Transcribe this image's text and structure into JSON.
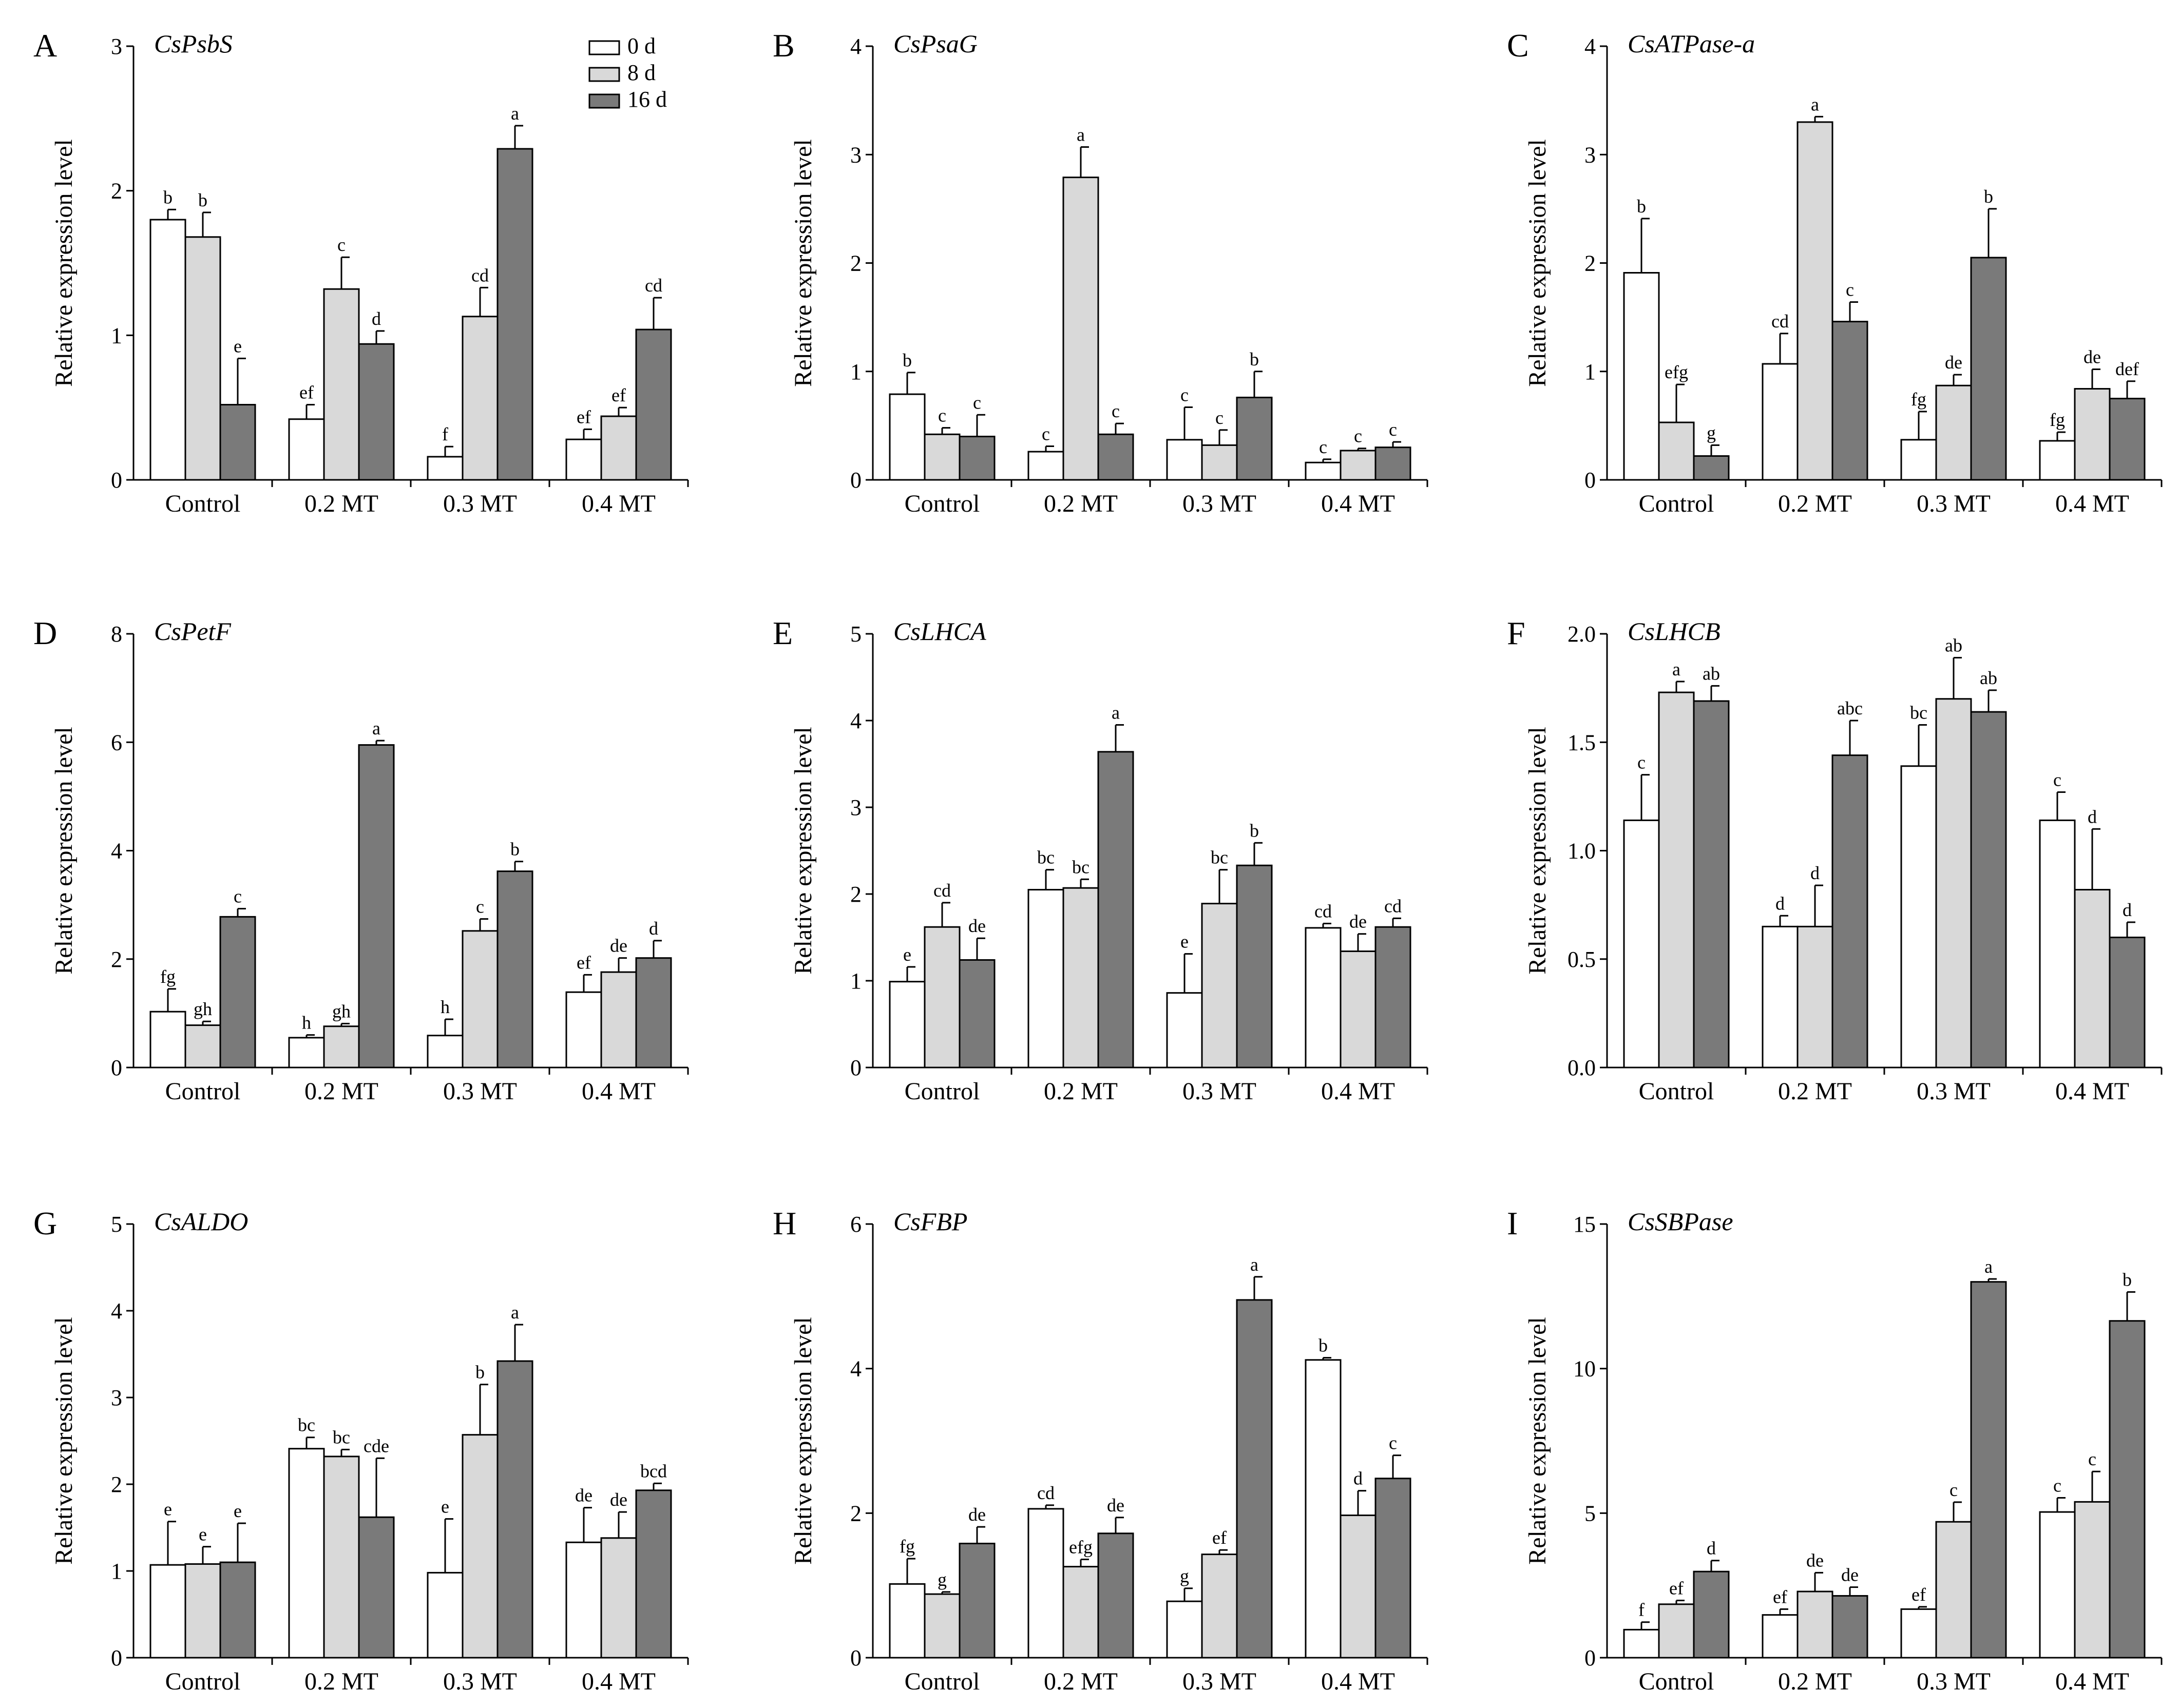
{
  "figure_info": {
    "legend": [
      {
        "label": "0 d",
        "color": "#ffffff"
      },
      {
        "label": "8 d",
        "color": "#d9d9d9"
      },
      {
        "label": "16 d",
        "color": "#7a7a7a"
      }
    ],
    "series_colors": [
      "#ffffff",
      "#d9d9d9",
      "#7a7a7a"
    ]
  },
  "chart_data": [
    {
      "panel": "A",
      "title": "CsPsbS",
      "type": "bar",
      "ylabel": "Relative expression level",
      "ylim": [
        0,
        3
      ],
      "yticks": [
        "0",
        "1",
        "2",
        "3"
      ],
      "categories": [
        "Control",
        "0.2 MT",
        "0.3 MT",
        "0.4 MT"
      ],
      "series": [
        {
          "name": "0 d",
          "values": [
            1.8,
            0.42,
            0.16,
            0.28
          ],
          "errors": [
            0.07,
            0.1,
            0.07,
            0.07
          ],
          "letters": [
            "b",
            "ef",
            "f",
            "ef"
          ]
        },
        {
          "name": "8 d",
          "values": [
            1.68,
            1.32,
            1.13,
            0.44
          ],
          "errors": [
            0.17,
            0.22,
            0.2,
            0.06
          ],
          "letters": [
            "b",
            "c",
            "cd",
            "ef"
          ]
        },
        {
          "name": "16 d",
          "values": [
            0.52,
            0.94,
            2.29,
            1.04
          ],
          "errors": [
            0.32,
            0.09,
            0.16,
            0.22
          ],
          "letters": [
            "e",
            "d",
            "a",
            "cd"
          ]
        }
      ]
    },
    {
      "panel": "B",
      "title": "CsPsaG",
      "type": "bar",
      "ylabel": "Relative expression level",
      "ylim": [
        0,
        4
      ],
      "yticks": [
        "0",
        "1",
        "2",
        "3",
        "4"
      ],
      "categories": [
        "Control",
        "0.2 MT",
        "0.3 MT",
        "0.4 MT"
      ],
      "series": [
        {
          "name": "0 d",
          "values": [
            0.79,
            0.26,
            0.37,
            0.16
          ],
          "errors": [
            0.2,
            0.05,
            0.3,
            0.03
          ],
          "letters": [
            "b",
            "c",
            "c",
            "c"
          ]
        },
        {
          "name": "8 d",
          "values": [
            0.42,
            2.79,
            0.32,
            0.27
          ],
          "errors": [
            0.06,
            0.28,
            0.14,
            0.02
          ],
          "letters": [
            "c",
            "a",
            "c",
            "c"
          ]
        },
        {
          "name": "16 d",
          "values": [
            0.4,
            0.42,
            0.76,
            0.3
          ],
          "errors": [
            0.2,
            0.1,
            0.24,
            0.05
          ],
          "letters": [
            "c",
            "c",
            "b",
            "c"
          ]
        }
      ]
    },
    {
      "panel": "C",
      "title": "CsATPase-a",
      "type": "bar",
      "ylabel": "Relative expression level",
      "ylim": [
        0,
        4
      ],
      "yticks": [
        "0",
        "1",
        "2",
        "3",
        "4"
      ],
      "categories": [
        "Control",
        "0.2 MT",
        "0.3 MT",
        "0.4 MT"
      ],
      "series": [
        {
          "name": "0 d",
          "values": [
            1.91,
            1.07,
            0.37,
            0.36
          ],
          "errors": [
            0.5,
            0.28,
            0.26,
            0.08
          ],
          "letters": [
            "b",
            "cd",
            "fg",
            "fg"
          ]
        },
        {
          "name": "8 d",
          "values": [
            0.53,
            3.3,
            0.87,
            0.84
          ],
          "errors": [
            0.35,
            0.05,
            0.1,
            0.18
          ],
          "letters": [
            "efg",
            "a",
            "de",
            "de"
          ]
        },
        {
          "name": "16 d",
          "values": [
            0.22,
            1.46,
            2.05,
            0.75
          ],
          "errors": [
            0.1,
            0.18,
            0.45,
            0.16
          ],
          "letters": [
            "g",
            "c",
            "b",
            "def"
          ]
        }
      ]
    },
    {
      "panel": "D",
      "title": "CsPetF",
      "type": "bar",
      "ylabel": "Relative expression level",
      "ylim": [
        0,
        8
      ],
      "yticks": [
        "0",
        "2",
        "4",
        "6",
        "8"
      ],
      "categories": [
        "Control",
        "0.2 MT",
        "0.3 MT",
        "0.4 MT"
      ],
      "series": [
        {
          "name": "0 d",
          "values": [
            1.03,
            0.55,
            0.59,
            1.39
          ],
          "errors": [
            0.42,
            0.05,
            0.3,
            0.32
          ],
          "letters": [
            "fg",
            "h",
            "h",
            "ef"
          ]
        },
        {
          "name": "8 d",
          "values": [
            0.78,
            0.76,
            2.52,
            1.76
          ],
          "errors": [
            0.07,
            0.05,
            0.22,
            0.26
          ],
          "letters": [
            "gh",
            "gh",
            "c",
            "de"
          ]
        },
        {
          "name": "16 d",
          "values": [
            2.78,
            5.95,
            3.62,
            2.02
          ],
          "errors": [
            0.15,
            0.08,
            0.18,
            0.32
          ],
          "letters": [
            "c",
            "a",
            "b",
            "d"
          ]
        }
      ]
    },
    {
      "panel": "E",
      "title": "CsLHCA",
      "type": "bar",
      "ylabel": "Relative expression level",
      "ylim": [
        0,
        5
      ],
      "yticks": [
        "0",
        "1",
        "2",
        "3",
        "4",
        "5"
      ],
      "categories": [
        "Control",
        "0.2 MT",
        "0.3 MT",
        "0.4 MT"
      ],
      "series": [
        {
          "name": "0 d",
          "values": [
            0.99,
            2.05,
            0.86,
            1.61
          ],
          "errors": [
            0.17,
            0.23,
            0.45,
            0.05
          ],
          "letters": [
            "e",
            "bc",
            "e",
            "cd"
          ]
        },
        {
          "name": "8 d",
          "values": [
            1.62,
            2.07,
            1.89,
            1.34
          ],
          "errors": [
            0.28,
            0.1,
            0.39,
            0.2
          ],
          "letters": [
            "cd",
            "bc",
            "bc",
            "de"
          ]
        },
        {
          "name": "16 d",
          "values": [
            1.24,
            3.64,
            2.33,
            1.62
          ],
          "errors": [
            0.25,
            0.31,
            0.26,
            0.1
          ],
          "letters": [
            "de",
            "a",
            "b",
            "cd"
          ]
        }
      ]
    },
    {
      "panel": "F",
      "title": "CsLHCB",
      "type": "bar",
      "ylabel": "Relative expression level",
      "ylim": [
        0,
        2
      ],
      "yticks": [
        "0.0",
        "0.5",
        "1.0",
        "1.5",
        "2.0"
      ],
      "categories": [
        "Control",
        "0.2 MT",
        "0.3 MT",
        "0.4 MT"
      ],
      "series": [
        {
          "name": "0 d",
          "values": [
            1.14,
            0.65,
            1.39,
            1.14
          ],
          "errors": [
            0.21,
            0.05,
            0.19,
            0.13
          ],
          "letters": [
            "c",
            "d",
            "bc",
            "c"
          ]
        },
        {
          "name": "8 d",
          "values": [
            1.73,
            0.65,
            1.7,
            0.82
          ],
          "errors": [
            0.05,
            0.19,
            0.19,
            0.28
          ],
          "letters": [
            "a",
            "d",
            "ab",
            "d"
          ]
        },
        {
          "name": "16 d",
          "values": [
            1.69,
            1.44,
            1.64,
            0.6
          ],
          "errors": [
            0.07,
            0.16,
            0.1,
            0.07
          ],
          "letters": [
            "ab",
            "abc",
            "ab",
            "d"
          ]
        }
      ]
    },
    {
      "panel": "G",
      "title": "CsALDO",
      "type": "bar",
      "ylabel": "Relative expression level",
      "ylim": [
        0,
        5
      ],
      "yticks": [
        "0",
        "1",
        "2",
        "3",
        "4",
        "5"
      ],
      "categories": [
        "Control",
        "0.2 MT",
        "0.3 MT",
        "0.4 MT"
      ],
      "series": [
        {
          "name": "0 d",
          "values": [
            1.07,
            2.41,
            0.98,
            1.33
          ],
          "errors": [
            0.5,
            0.13,
            0.62,
            0.4
          ],
          "letters": [
            "e",
            "bc",
            "e",
            "de"
          ]
        },
        {
          "name": "8 d",
          "values": [
            1.08,
            2.32,
            2.57,
            1.38
          ],
          "errors": [
            0.2,
            0.08,
            0.58,
            0.3
          ],
          "letters": [
            "e",
            "bc",
            "b",
            "de"
          ]
        },
        {
          "name": "16 d",
          "values": [
            1.1,
            1.62,
            3.42,
            1.93
          ],
          "errors": [
            0.45,
            0.68,
            0.42,
            0.08
          ],
          "letters": [
            "e",
            "cde",
            "a",
            "bcd"
          ]
        }
      ]
    },
    {
      "panel": "H",
      "title": "CsFBP",
      "type": "bar",
      "ylabel": "Relative expression level",
      "ylim": [
        0,
        6
      ],
      "yticks": [
        "0",
        "2",
        "4",
        "6"
      ],
      "categories": [
        "Control",
        "0.2 MT",
        "0.3 MT",
        "0.4 MT"
      ],
      "series": [
        {
          "name": "0 d",
          "values": [
            1.02,
            2.06,
            0.78,
            4.12
          ],
          "errors": [
            0.35,
            0.05,
            0.18,
            0.03
          ],
          "letters": [
            "fg",
            "cd",
            "g",
            "b"
          ]
        },
        {
          "name": "8 d",
          "values": [
            0.88,
            1.26,
            1.43,
            1.97
          ],
          "errors": [
            0.03,
            0.1,
            0.06,
            0.34
          ],
          "letters": [
            "g",
            "efg",
            "ef",
            "d"
          ]
        },
        {
          "name": "16 d",
          "values": [
            1.58,
            1.72,
            4.95,
            2.48
          ],
          "errors": [
            0.23,
            0.22,
            0.32,
            0.32
          ],
          "letters": [
            "de",
            "de",
            "a",
            "c"
          ]
        }
      ]
    },
    {
      "panel": "I",
      "title": "CsSBPase",
      "type": "bar",
      "ylabel": "Relative expression level",
      "ylim": [
        0,
        15
      ],
      "yticks": [
        "0",
        "5",
        "10",
        "15"
      ],
      "categories": [
        "Control",
        "0.2 MT",
        "0.3 MT",
        "0.4 MT"
      ],
      "series": [
        {
          "name": "0 d",
          "values": [
            0.97,
            1.48,
            1.68,
            5.04
          ],
          "errors": [
            0.26,
            0.2,
            0.08,
            0.49
          ],
          "letters": [
            "f",
            "ef",
            "ef",
            "c"
          ]
        },
        {
          "name": "8 d",
          "values": [
            1.85,
            2.29,
            4.7,
            5.39
          ],
          "errors": [
            0.13,
            0.65,
            0.68,
            1.05
          ],
          "letters": [
            "ef",
            "de",
            "c",
            "c"
          ]
        },
        {
          "name": "16 d",
          "values": [
            2.98,
            2.14,
            13.0,
            11.65
          ],
          "errors": [
            0.38,
            0.3,
            0.1,
            1.0
          ],
          "letters": [
            "d",
            "de",
            "a",
            "b"
          ]
        }
      ]
    }
  ]
}
